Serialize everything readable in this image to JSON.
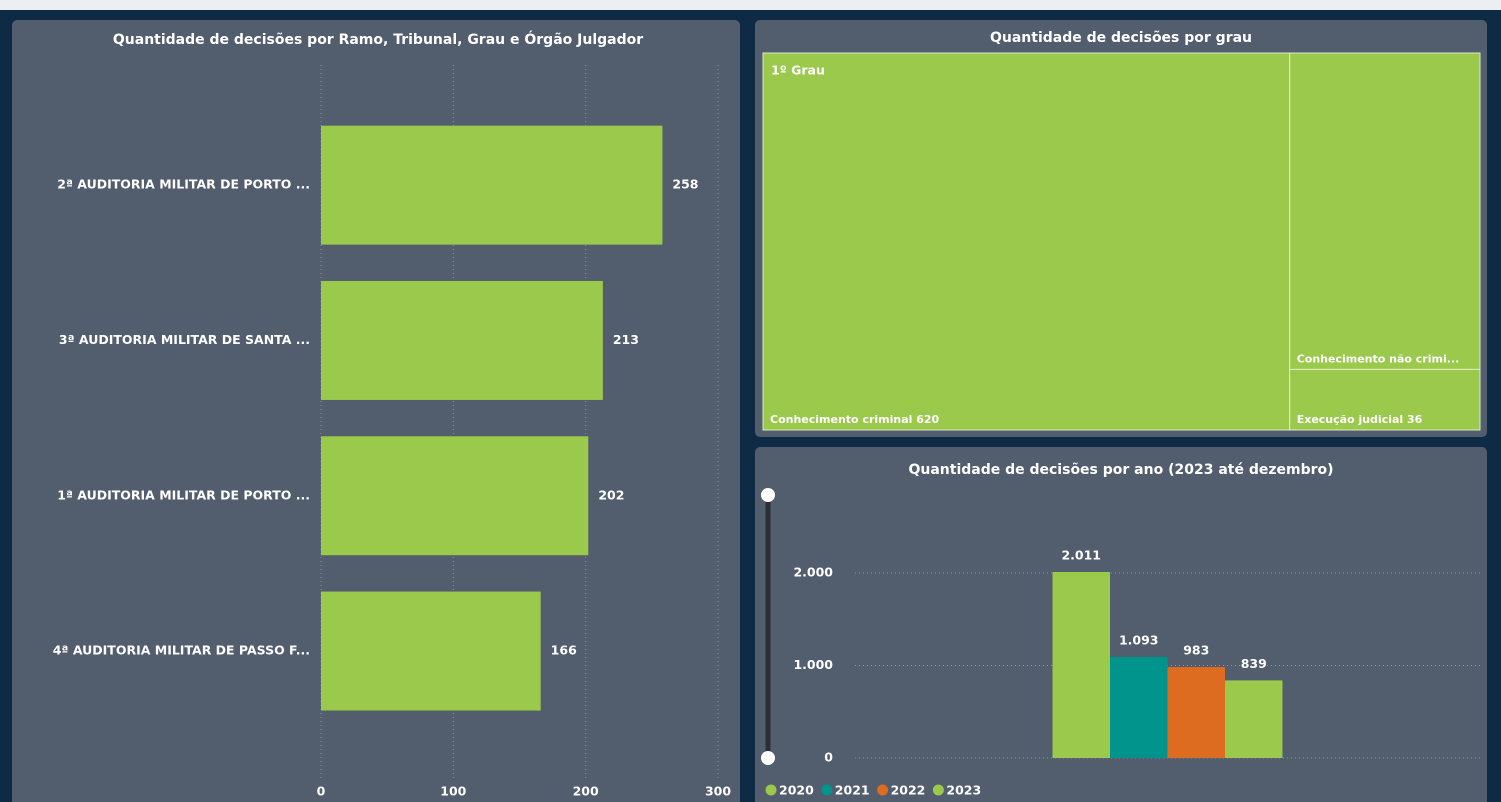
{
  "chart_data": [
    {
      "type": "hbar",
      "title": "Quantidade de decisões por Ramo, Tribunal, Grau e Órgão Julgador",
      "categories": [
        "2ª AUDITORIA MILITAR DE PORTO ...",
        "3ª AUDITORIA MILITAR DE SANTA ...",
        "1ª AUDITORIA MILITAR DE PORTO ...",
        "4ª AUDITORIA MILITAR DE PASSO F..."
      ],
      "values": [
        258,
        213,
        202,
        166
      ],
      "color": "#9bc94c",
      "xlim": [
        0,
        300
      ],
      "xticks": [
        0,
        100,
        200,
        300
      ],
      "grid": true
    },
    {
      "type": "treemap",
      "title": "Quantidade de decisões por grau",
      "group": "1º Grau",
      "categories": [
        "Conhecimento criminal",
        "Conhecimento não criminal",
        "Execução judicial"
      ],
      "values": [
        620,
        188,
        36
      ],
      "value_labels": [
        "Conhecimento criminal 620",
        "Conhecimento não crimi...",
        "Execução judicial 36"
      ],
      "color": "#9bc94c"
    },
    {
      "type": "bar",
      "title": "Quantidade de decisões por ano (2023 até dezembro)",
      "categories": [
        null
      ],
      "series": [
        {
          "name": "2020",
          "color": "#9bc94c",
          "values": [
            2011
          ],
          "value_labels": [
            "2.011"
          ]
        },
        {
          "name": "2021",
          "color": "#01948d",
          "values": [
            1093
          ],
          "value_labels": [
            "1.093"
          ]
        },
        {
          "name": "2022",
          "color": "#dd6b20",
          "values": [
            983
          ],
          "value_labels": [
            "983"
          ]
        },
        {
          "name": "2023",
          "color": "#9bc94c",
          "values": [
            839
          ],
          "value_labels": [
            "839"
          ]
        }
      ],
      "ylim": [
        0,
        2400
      ],
      "yticks": [
        0,
        {
          "value": 1000,
          "label": "1.000"
        },
        {
          "value": 2000,
          "label": "2.000"
        }
      ],
      "grid": true,
      "legend": "bottom-left"
    }
  ]
}
